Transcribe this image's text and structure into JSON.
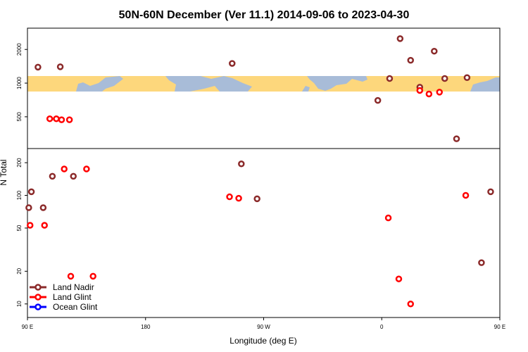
{
  "chart_data": {
    "type": "scatter",
    "title": "50N-60N December (Ver 11.1)   2014-09-06 to 2023-04-30",
    "xlabel": "Longitude (deg E)",
    "ylabel": "N Total",
    "xlim": [
      90,
      450
    ],
    "x_ticks": [
      {
        "value": 90,
        "label": "90 E"
      },
      {
        "value": 180,
        "label": "180"
      },
      {
        "value": 270,
        "label": "90 W"
      },
      {
        "value": 360,
        "label": "0"
      },
      {
        "value": 450,
        "label": "90 E"
      }
    ],
    "top_panel": {
      "scale": "log",
      "ylim": [
        260,
        3100
      ],
      "y_ticks": [
        500,
        1000,
        2000
      ],
      "map_band_range": [
        850,
        1150
      ]
    },
    "bottom_panel": {
      "scale": "log",
      "ylim": [
        7.5,
        270
      ],
      "y_ticks": [
        10,
        20,
        50,
        100,
        200
      ]
    },
    "legend": {
      "position": "bottom-left",
      "entries": [
        {
          "label": "Land Nadir",
          "color": "#8b2a2a"
        },
        {
          "label": "Land Glint",
          "color": "#ff0000"
        },
        {
          "label": "Ocean Glint",
          "color": "#0000ff"
        }
      ]
    },
    "series": [
      {
        "name": "Land Nadir",
        "color": "#8b2a2a",
        "top": [
          {
            "x": 115,
            "y": 1400
          },
          {
            "x": 246,
            "y": 1500
          },
          {
            "x": 357,
            "y": 700
          },
          {
            "x": 366,
            "y": 1100
          },
          {
            "x": 374,
            "y": 2500
          },
          {
            "x": 382,
            "y": 1600
          },
          {
            "x": 389,
            "y": 920
          },
          {
            "x": 400,
            "y": 1930
          },
          {
            "x": 408,
            "y": 1100
          },
          {
            "x": 417,
            "y": 318
          },
          {
            "x": 425,
            "y": 1120
          },
          {
            "x": 458,
            "y": 1390
          }
        ],
        "bottom": [
          {
            "x": 93,
            "y": 108
          },
          {
            "x": 102,
            "y": 77
          },
          {
            "x": 125,
            "y": 150
          },
          {
            "x": 253,
            "y": 195
          },
          {
            "x": 265,
            "y": 93
          },
          {
            "x": 436,
            "y": 24
          },
          {
            "x": 443,
            "y": 108
          },
          {
            "x": 451,
            "y": 77
          },
          {
            "x": 469,
            "y": 150
          }
        ]
      },
      {
        "name": "Land Glint",
        "color": "#ff0000",
        "top": [
          {
            "x": 112,
            "y": 480
          },
          {
            "x": 122,
            "y": 470
          },
          {
            "x": 389,
            "y": 860
          },
          {
            "x": 396,
            "y": 800
          },
          {
            "x": 404,
            "y": 830
          },
          {
            "x": 467,
            "y": 480
          },
          {
            "x": 476,
            "y": 470
          }
        ],
        "bottom": [
          {
            "x": 103,
            "y": 53
          },
          {
            "x": 135,
            "y": 175
          },
          {
            "x": 140,
            "y": 18
          },
          {
            "x": 244,
            "y": 97
          },
          {
            "x": 251,
            "y": 94
          },
          {
            "x": 365,
            "y": 62
          },
          {
            "x": 373,
            "y": 17
          },
          {
            "x": 382,
            "y": 10
          },
          {
            "x": 424,
            "y": 100
          },
          {
            "x": 452,
            "y": 53
          },
          {
            "x": 478,
            "y": 175
          },
          {
            "x": 483,
            "y": 18
          }
        ]
      },
      {
        "name": "Ocean Glint",
        "color": "#0000ff",
        "top": [],
        "bottom": []
      }
    ]
  }
}
